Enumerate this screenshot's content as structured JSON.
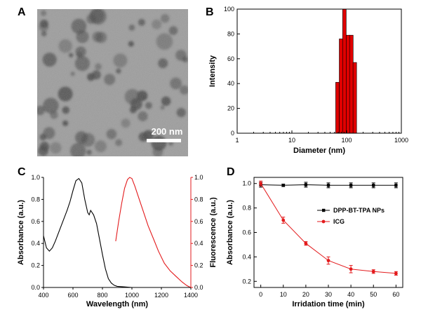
{
  "panels": {
    "A": {
      "label": "A",
      "scale_bar_text": "200 nm"
    }
  },
  "colors": {
    "red": "#e31a1c",
    "black": "#000000",
    "bar_fill": "#e00000"
  },
  "chart_data": [
    {
      "panel": "B",
      "label": "B",
      "type": "bar",
      "xscale": "log",
      "xlim": [
        1,
        1000
      ],
      "ylim": [
        0,
        100
      ],
      "xticks": [
        1,
        10,
        100,
        1000
      ],
      "xtick_labels": [
        "1",
        "10",
        "100",
        "1000"
      ],
      "yticks": [
        0,
        20,
        40,
        60,
        80,
        100
      ],
      "ytick_labels": [
        "0",
        "20",
        "40",
        "60",
        "80",
        "100"
      ],
      "xlabel": "Diameter (nm)",
      "ylabel": "Intensity",
      "categories": [
        68,
        79,
        91,
        106,
        122,
        141
      ],
      "values": [
        41,
        76,
        100,
        79,
        79,
        57
      ]
    },
    {
      "panel": "C",
      "label": "C",
      "type": "line",
      "xlim": [
        400,
        1400
      ],
      "ylim": [
        0,
        1.0
      ],
      "xticks": [
        400,
        600,
        800,
        1000,
        1200,
        1400
      ],
      "xtick_labels": [
        "400",
        "600",
        "800",
        "1000",
        "1200",
        "1400"
      ],
      "yticks": [
        0,
        0.2,
        0.4,
        0.6,
        0.8,
        1.0
      ],
      "ytick_labels": [
        "0.0",
        "0.2",
        "0.4",
        "0.6",
        "0.8",
        "1.0"
      ],
      "y2ticks": [
        0,
        0.2,
        0.4,
        0.6,
        0.8,
        1.0
      ],
      "y2tick_labels": [
        "0.0",
        "0.2",
        "0.4",
        "0.6",
        "0.8",
        "1.0"
      ],
      "xlabel": "Wavelength (nm)",
      "ylabel": "Absorbance (a.u.)",
      "y2label": "Fluorescence (a.u.)",
      "series": [
        {
          "name": "Absorbance",
          "axis": "left",
          "color": "#000000",
          "x": [
            400,
            420,
            440,
            460,
            480,
            500,
            520,
            540,
            560,
            580,
            600,
            620,
            640,
            660,
            680,
            700,
            710,
            720,
            740,
            760,
            780,
            800,
            820,
            840,
            860,
            880,
            900,
            950,
            1000
          ],
          "y": [
            0.47,
            0.36,
            0.33,
            0.36,
            0.42,
            0.49,
            0.56,
            0.63,
            0.7,
            0.78,
            0.88,
            0.97,
            0.99,
            0.95,
            0.8,
            0.68,
            0.66,
            0.7,
            0.66,
            0.58,
            0.44,
            0.3,
            0.17,
            0.08,
            0.04,
            0.02,
            0.01,
            0.005,
            0.0
          ]
        },
        {
          "name": "Fluorescence",
          "axis": "right",
          "color": "#e31a1c",
          "x": [
            890,
            910,
            930,
            950,
            970,
            985,
            1000,
            1020,
            1050,
            1080,
            1110,
            1150,
            1180,
            1220,
            1260,
            1300,
            1340,
            1370,
            1390,
            1400
          ],
          "y": [
            0.42,
            0.6,
            0.76,
            0.9,
            0.98,
            1.0,
            0.99,
            0.92,
            0.8,
            0.68,
            0.56,
            0.43,
            0.33,
            0.22,
            0.15,
            0.1,
            0.05,
            0.02,
            0.005,
            0.0
          ]
        }
      ]
    },
    {
      "panel": "D",
      "label": "D",
      "type": "line",
      "xlim": [
        -3,
        63
      ],
      "ylim": [
        0.15,
        1.05
      ],
      "xticks": [
        0,
        10,
        20,
        30,
        40,
        50,
        60
      ],
      "xtick_labels": [
        "0",
        "10",
        "20",
        "30",
        "40",
        "50",
        "60"
      ],
      "yticks": [
        0.2,
        0.4,
        0.6,
        0.8,
        1.0
      ],
      "ytick_labels": [
        "0.2",
        "0.4",
        "0.6",
        "0.8",
        "1.0"
      ],
      "xlabel": "Irridation time (min)",
      "ylabel": "Absorbance (a.u.)",
      "legend_position": "center-right",
      "series": [
        {
          "name": "DPP-BT-TPA NPs",
          "color": "#000000",
          "marker": "square",
          "x": [
            0,
            10,
            20,
            30,
            40,
            50,
            60
          ],
          "y": [
            0.99,
            0.985,
            0.99,
            0.985,
            0.985,
            0.985,
            0.985
          ],
          "err": [
            0.02,
            0.01,
            0.02,
            0.02,
            0.02,
            0.02,
            0.02
          ]
        },
        {
          "name": "ICG",
          "color": "#e31a1c",
          "marker": "circle",
          "x": [
            0,
            10,
            20,
            30,
            40,
            50,
            60
          ],
          "y": [
            1.0,
            0.7,
            0.51,
            0.37,
            0.3,
            0.28,
            0.265
          ],
          "err": [
            0.02,
            0.025,
            0.015,
            0.03,
            0.03,
            0.015,
            0.015
          ]
        }
      ]
    }
  ]
}
